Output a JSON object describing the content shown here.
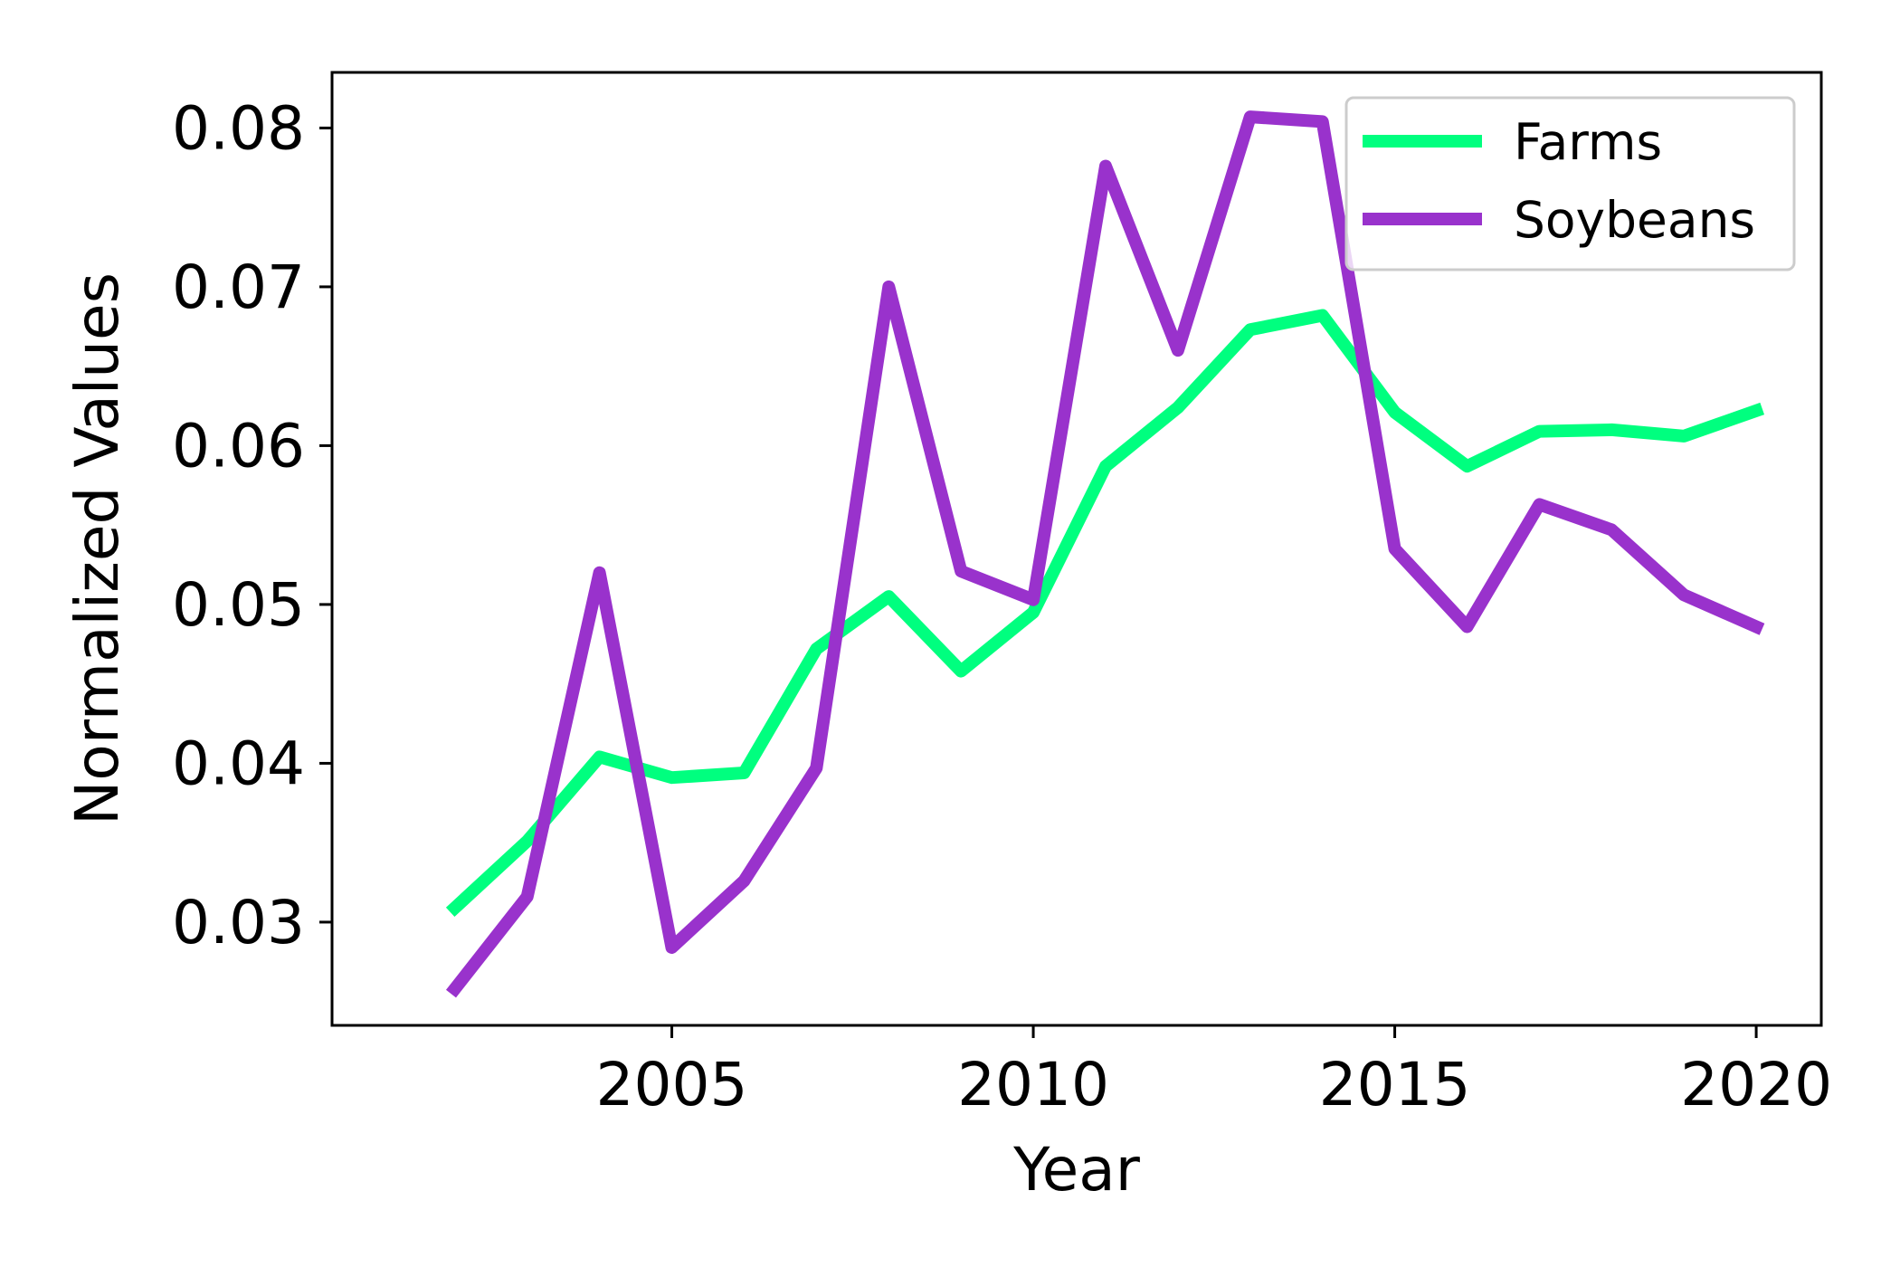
{
  "chart_data": {
    "type": "line",
    "title": "",
    "xlabel": "Year",
    "ylabel": "Normalized Values",
    "x": [
      2002,
      2003,
      2004,
      2005,
      2006,
      2007,
      2008,
      2009,
      2010,
      2011,
      2012,
      2013,
      2014,
      2015,
      2016,
      2017,
      2018,
      2019,
      2020
    ],
    "series": [
      {
        "name": "Farms",
        "color": "#00ff7f",
        "values": [
          0.0309,
          0.0351,
          0.0404,
          0.0391,
          0.0394,
          0.0472,
          0.0505,
          0.0458,
          0.0495,
          0.0587,
          0.0624,
          0.0673,
          0.0682,
          0.0621,
          0.0587,
          0.0609,
          0.061,
          0.0606,
          0.0622
        ]
      },
      {
        "name": "Soybeans",
        "color": "#9932cc",
        "values": [
          0.0258,
          0.0316,
          0.052,
          0.0284,
          0.0326,
          0.0397,
          0.07,
          0.0521,
          0.0503,
          0.0776,
          0.066,
          0.0807,
          0.0804,
          0.0535,
          0.0486,
          0.0563,
          0.0547,
          0.0506,
          0.0486
        ]
      }
    ],
    "xlim": [
      2000.3,
      2020.9
    ],
    "ylim": [
      0.0235,
      0.0835
    ],
    "xticks": [
      2005,
      2010,
      2015,
      2020
    ],
    "xtick_labels": [
      "2005",
      "2010",
      "2015",
      "2020"
    ],
    "yticks": [
      0.03,
      0.04,
      0.05,
      0.06,
      0.07,
      0.08
    ],
    "ytick_labels": [
      "0.03",
      "0.04",
      "0.05",
      "0.06",
      "0.07",
      "0.08"
    ],
    "grid": false,
    "legend_position": "top-right"
  }
}
